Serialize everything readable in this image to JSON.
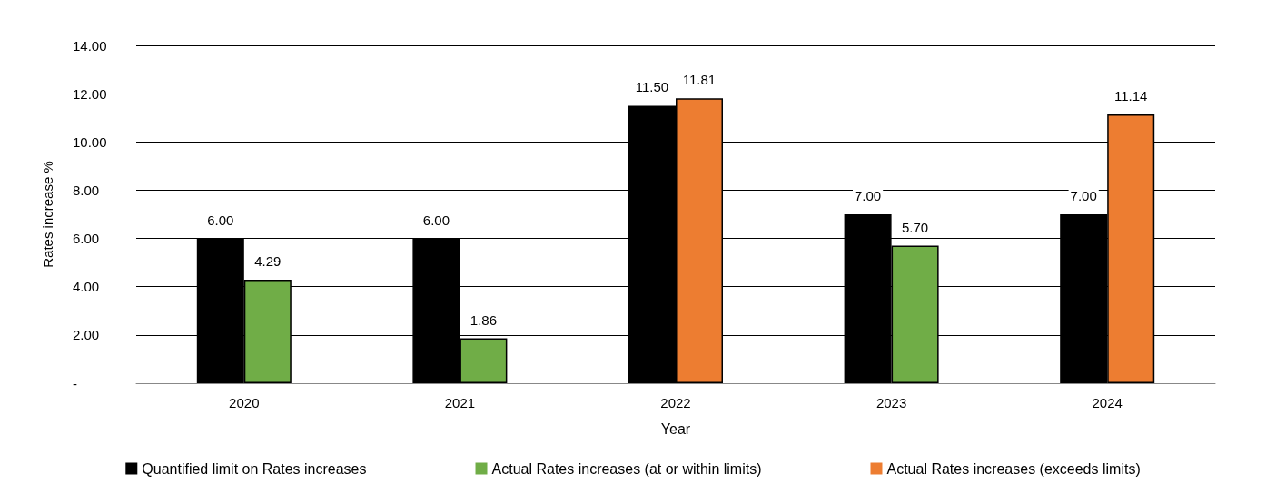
{
  "chart_data": {
    "type": "bar",
    "xlabel": "Year",
    "ylabel": "Rates increase %",
    "categories": [
      "2020",
      "2021",
      "2022",
      "2023",
      "2024"
    ],
    "series": [
      {
        "name": "Quantified limit on Rates increases",
        "color": "#000000",
        "values": [
          6,
          6,
          11.5,
          7,
          7
        ],
        "value_labels": [
          "6.00",
          "6.00",
          "11.50",
          "7.00",
          "7.00"
        ]
      },
      {
        "name": "Actual Rates increases (at or within limits)",
        "color": "#70ad47",
        "values": [
          4.29,
          1.86,
          null,
          5.7,
          null
        ],
        "value_labels": [
          "4.29",
          "1.86",
          null,
          "5.70",
          null
        ]
      },
      {
        "name": "Actual Rates increases (exceeds limits)",
        "color": "#ed7d31",
        "values": [
          null,
          null,
          11.81,
          null,
          11.14
        ],
        "value_labels": [
          null,
          null,
          "11.81",
          null,
          "11.14"
        ]
      }
    ],
    "ylim": [
      0,
      14
    ],
    "yticks": [
      {
        "value": 0,
        "label": "-"
      },
      {
        "value": 2,
        "label": "2.00"
      },
      {
        "value": 4,
        "label": "4.00"
      },
      {
        "value": 6,
        "label": "6.00"
      },
      {
        "value": 8,
        "label": "8.00"
      },
      {
        "value": 10,
        "label": "10.00"
      },
      {
        "value": 12,
        "label": "12.00"
      },
      {
        "value": 14,
        "label": "14.00"
      }
    ],
    "grid": "y",
    "legend": "bottom"
  }
}
